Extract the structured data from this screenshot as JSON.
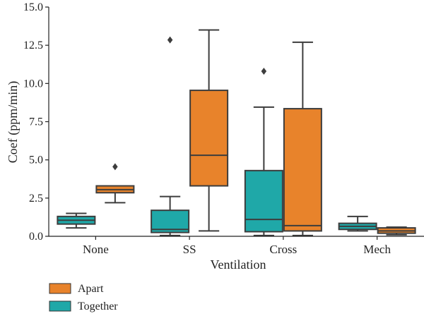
{
  "chart_data": {
    "type": "boxplot",
    "xlabel": "Ventilation",
    "ylabel": "Coef (ppm/min)",
    "ylim": [
      0,
      15
    ],
    "yticks": [
      "0.0",
      "2.5",
      "5.0",
      "7.5",
      "10.0",
      "12.5",
      "15.0"
    ],
    "categories": [
      "None",
      "SS",
      "Cross",
      "Mech"
    ],
    "legend": {
      "placement": "bottom-left"
    },
    "grid": false,
    "series": [
      {
        "name": "Together",
        "color": "#1fa8a8",
        "boxes": [
          {
            "category": "None",
            "whislo": 0.55,
            "q1": 0.8,
            "med": 1.05,
            "q3": 1.3,
            "whishi": 1.5,
            "fliers": []
          },
          {
            "category": "SS",
            "whislo": 0.05,
            "q1": 0.25,
            "med": 0.45,
            "q3": 1.7,
            "whishi": 2.6,
            "fliers": [
              12.85
            ]
          },
          {
            "category": "Cross",
            "whislo": 0.05,
            "q1": 0.3,
            "med": 1.1,
            "q3": 4.3,
            "whishi": 8.45,
            "fliers": [
              10.8
            ]
          },
          {
            "category": "Mech",
            "whislo": 0.35,
            "q1": 0.45,
            "med": 0.65,
            "q3": 0.85,
            "whishi": 1.3,
            "fliers": []
          }
        ]
      },
      {
        "name": "Apart",
        "color": "#e8832b",
        "boxes": [
          {
            "category": "None",
            "whislo": 2.2,
            "q1": 2.85,
            "med": 3.05,
            "q3": 3.3,
            "whishi": 3.3,
            "fliers": [
              4.55
            ]
          },
          {
            "category": "SS",
            "whislo": 0.35,
            "q1": 3.3,
            "med": 5.3,
            "q3": 9.55,
            "whishi": 13.5,
            "fliers": []
          },
          {
            "category": "Cross",
            "whislo": 0.05,
            "q1": 0.35,
            "med": 0.7,
            "q3": 8.35,
            "whishi": 12.7,
            "fliers": []
          },
          {
            "category": "Mech",
            "whislo": 0.1,
            "q1": 0.2,
            "med": 0.35,
            "q3": 0.55,
            "whishi": 0.6,
            "fliers": []
          }
        ]
      }
    ]
  }
}
